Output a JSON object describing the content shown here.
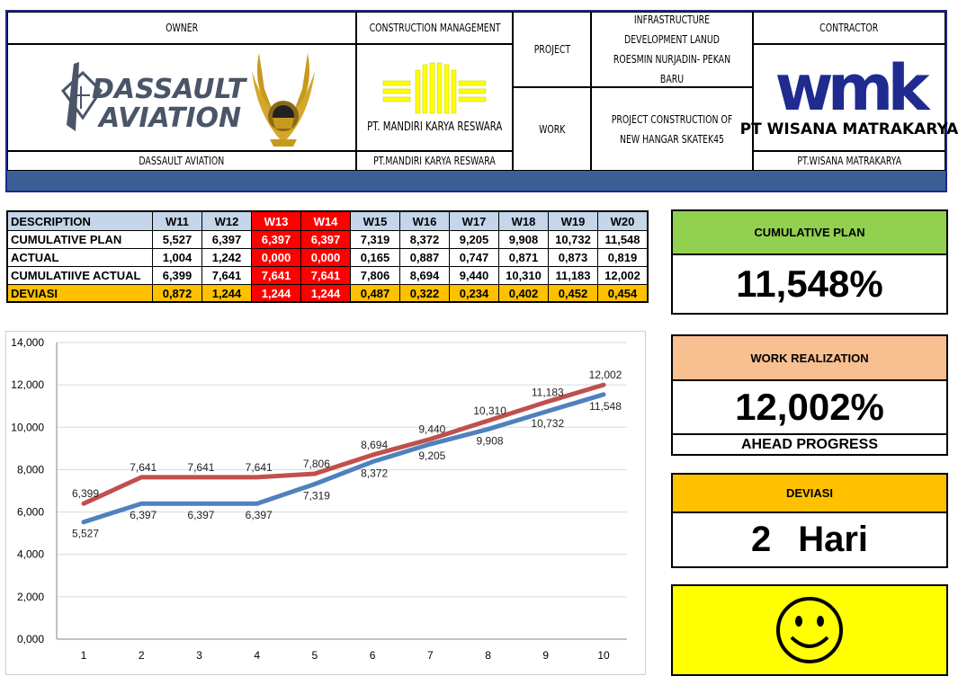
{
  "header": {
    "owner_label": "OWNER",
    "owner_logo_text_1": "DASSAULT",
    "owner_logo_text_2": "AVIATION",
    "owner_name": "DASSAULT AVIATION",
    "cm_label": "CONSTRUCTION MANAGEMENT",
    "cm_logo_text": "PT. MANDIRI KARYA RESWARA",
    "cm_name": "PT.MANDIRI KARYA RESWARA",
    "project_label": "PROJECT",
    "project_value": "INFRASTRUCTURE DEVELOPMENT LANUD ROESMIN NURJADIN- PEKAN BARU",
    "work_label": "WORK",
    "work_value": "PROJECT CONSTRUCTION OF NEW HANGAR SKATEK45",
    "contractor_label": "CONTRACTOR",
    "contractor_logo_text": "wmk",
    "contractor_logo_name": "PT WISANA MATRAKARYA",
    "contractor_name": "PT.WISANA MATRAKARYA",
    "colors": {
      "border": "#1e2a8a",
      "bar": "#3a5f94",
      "cm_logo": "#ffff00",
      "wmk": "#1f2b8f"
    }
  },
  "table": {
    "header": [
      "DESCRIPTION",
      "W11",
      "W12",
      "W13",
      "W14",
      "W15",
      "W16",
      "W17",
      "W18",
      "W19",
      "W20"
    ],
    "rows": [
      [
        "CUMULATIVE PLAN",
        "5,527",
        "6,397",
        "6,397",
        "6,397",
        "7,319",
        "8,372",
        "9,205",
        "9,908",
        "10,732",
        "11,548"
      ],
      [
        "ACTUAL",
        "1,004",
        "1,242",
        "0,000",
        "0,000",
        "0,165",
        "0,887",
        "0,747",
        "0,871",
        "0,873",
        "0,819"
      ],
      [
        "CUMULATIIVE ACTUAL",
        "6,399",
        "7,641",
        "7,641",
        "7,641",
        "7,806",
        "8,694",
        "9,440",
        "10,310",
        "11,183",
        "12,002"
      ],
      [
        "DEVIASI",
        "0,872",
        "1,244",
        "1,244",
        "1,244",
        "0,487",
        "0,322",
        "0,234",
        "0,402",
        "0,452",
        "0,454"
      ]
    ],
    "highlight_columns": [
      "W13",
      "W14"
    ],
    "colors": {
      "header": "#c5d5ea",
      "deviasi": "#ffc000",
      "highlight": "#ff0000"
    }
  },
  "chart_data": {
    "type": "line",
    "x": [
      1,
      2,
      3,
      4,
      5,
      6,
      7,
      8,
      9,
      10
    ],
    "y_ticks": [
      "0,000",
      "2,000",
      "4,000",
      "6,000",
      "8,000",
      "10,000",
      "12,000",
      "14,000"
    ],
    "ylim": [
      0,
      14
    ],
    "grid": true,
    "series": [
      {
        "name": "",
        "color": "#c0504d",
        "values": [
          6.399,
          7.641,
          7.641,
          7.641,
          7.806,
          8.694,
          9.44,
          10.31,
          11.183,
          12.002
        ],
        "labels": [
          "6,399",
          "7,641",
          "7,641",
          "7,641",
          "7,806",
          "8,694",
          "9,440",
          "10,310",
          "11,183",
          "12,002"
        ]
      },
      {
        "name": "",
        "color": "#4f81bd",
        "values": [
          5.527,
          6.397,
          6.397,
          6.397,
          7.319,
          8.372,
          9.205,
          9.908,
          10.732,
          11.548
        ],
        "labels": [
          "5,527",
          "6,397",
          "6,397",
          "6,397",
          "7,319",
          "8,372",
          "9,205",
          "9,908",
          "10,732",
          "11,548"
        ]
      }
    ]
  },
  "panels": {
    "cumulative_plan": {
      "title": "CUMULATIVE PLAN",
      "value": "11,548%",
      "color": "#92d050"
    },
    "work_realization": {
      "title": "WORK REALIZATION",
      "value": "12,002%",
      "status": "AHEAD PROGRESS",
      "color": "#f8bf90"
    },
    "deviasi": {
      "title": "DEVIASI",
      "number": "2",
      "unit": "Hari",
      "color": "#ffc000"
    },
    "status_face": {
      "icon": "smiley-icon",
      "color": "#ffff00"
    }
  }
}
